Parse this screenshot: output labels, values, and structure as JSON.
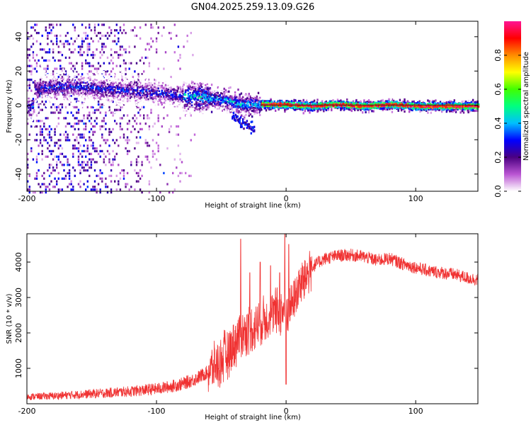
{
  "title": "GN04.2025.259.13.09.G26",
  "chart_data": [
    {
      "type": "heatmap",
      "xlabel": "Height of straight line (km)",
      "ylabel": "Frequency (Hz)",
      "xlim": [
        -200,
        148
      ],
      "ylim": [
        -50,
        49
      ],
      "xticks": [
        -200,
        -100,
        0,
        100
      ],
      "yticks": [
        -40,
        -20,
        0,
        20,
        40
      ],
      "colorbar": {
        "label": "Normalized spectral amplitude",
        "range": [
          0,
          1
        ],
        "ticks": [
          0,
          0.2,
          0.4,
          0.6,
          0.8
        ],
        "colors": [
          "#ffffff",
          "#ba55d3",
          "#4b0082",
          "#0000ff",
          "#00bfff",
          "#00ff80",
          "#40ff00",
          "#ffff00",
          "#ff8c00",
          "#ff0000",
          "#ff1493"
        ]
      },
      "ridge": [
        {
          "x": -195,
          "y": 10
        },
        {
          "x": -180,
          "y": 11
        },
        {
          "x": -160,
          "y": 11
        },
        {
          "x": -140,
          "y": 10
        },
        {
          "x": -120,
          "y": 9
        },
        {
          "x": -100,
          "y": 8
        },
        {
          "x": -80,
          "y": 6
        },
        {
          "x": -60,
          "y": 5
        },
        {
          "x": -45,
          "y": 3
        },
        {
          "x": -35,
          "y": 1
        },
        {
          "x": -25,
          "y": 1
        },
        {
          "x": -10,
          "y": 1
        },
        {
          "x": 0,
          "y": 1
        },
        {
          "x": 20,
          "y": 0
        },
        {
          "x": 40,
          "y": 1
        },
        {
          "x": 60,
          "y": 0
        },
        {
          "x": 80,
          "y": 1
        },
        {
          "x": 100,
          "y": 0
        },
        {
          "x": 120,
          "y": 0
        },
        {
          "x": 148,
          "y": 0
        }
      ]
    },
    {
      "type": "line",
      "xlabel": "Height of straight line (km)",
      "ylabel": "SNR (10 * v/v)",
      "xlim": [
        -200,
        148
      ],
      "ylim": [
        0,
        4800
      ],
      "xticks": [
        -200,
        -100,
        0,
        100
      ],
      "yticks": [
        1000,
        2000,
        3000,
        4000
      ],
      "color": "#f03232",
      "series": [
        {
          "name": "SNR",
          "x": [
            -200,
            -180,
            -160,
            -140,
            -120,
            -100,
            -90,
            -80,
            -70,
            -60,
            -50,
            -45,
            -40,
            -35,
            -30,
            -25,
            -20,
            -15,
            -10,
            -5,
            0,
            5,
            10,
            15,
            20,
            25,
            30,
            40,
            50,
            60,
            70,
            80,
            90,
            100,
            110,
            120,
            130,
            140,
            148
          ],
          "y": [
            200,
            220,
            260,
            300,
            350,
            420,
            480,
            560,
            700,
            900,
            1200,
            1450,
            1700,
            1950,
            2050,
            2150,
            2300,
            2450,
            2550,
            2650,
            2600,
            2850,
            3300,
            3600,
            3850,
            4000,
            4100,
            4180,
            4200,
            4150,
            4050,
            4100,
            3950,
            3850,
            3750,
            3700,
            3650,
            3550,
            3500
          ]
        }
      ],
      "spikes": [
        {
          "x": -35,
          "y": 4650
        },
        {
          "x": -28,
          "y": 3700
        },
        {
          "x": -20,
          "y": 4000
        },
        {
          "x": -12,
          "y": 3900
        },
        {
          "x": -5,
          "y": 3700
        },
        {
          "x": -1,
          "y": 4800
        },
        {
          "x": 2,
          "y": 4500
        },
        {
          "x": 0,
          "y": 550
        }
      ]
    }
  ]
}
